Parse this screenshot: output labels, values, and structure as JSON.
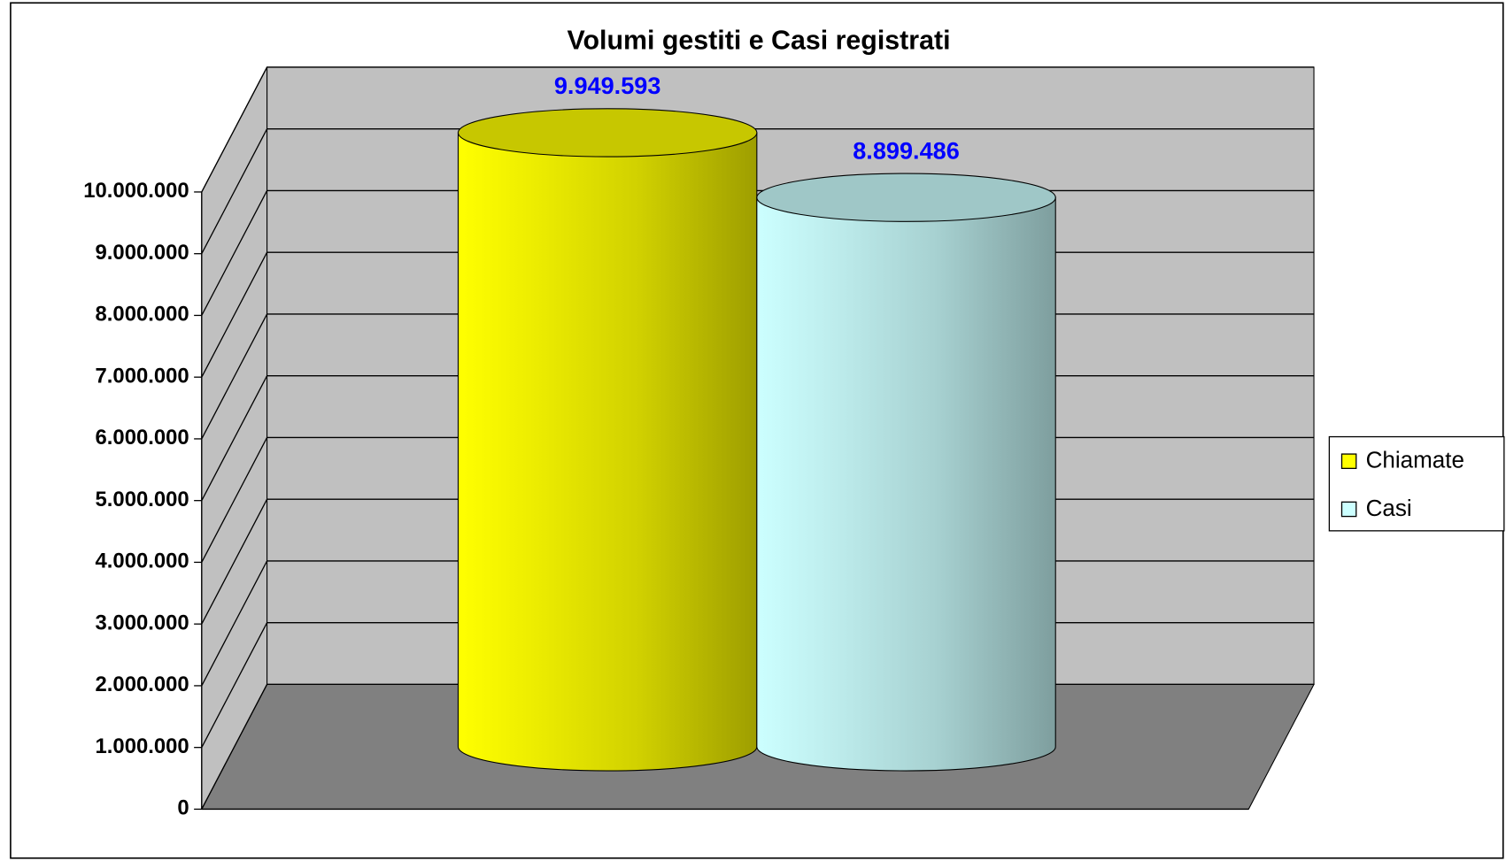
{
  "chart_data": {
    "type": "cylinder",
    "title": "Volumi gestiti e Casi registrati",
    "series": [
      {
        "name": "Chiamate",
        "color": "#ffff00",
        "values": [
          9949593
        ],
        "value_labels": [
          "9.949.593"
        ]
      },
      {
        "name": "Casi",
        "color": "#ccffff",
        "values": [
          8899486
        ],
        "value_labels": [
          "8.899.486"
        ]
      }
    ],
    "ylim": [
      0,
      10000000
    ],
    "yticks": [
      0,
      {
        "value": 1000000,
        "label": "1.000.000"
      },
      {
        "value": 2000000,
        "label": "2.000.000"
      },
      {
        "value": 3000000,
        "label": "3.000.000"
      },
      {
        "value": 4000000,
        "label": "4.000.000"
      },
      {
        "value": 5000000,
        "label": "5.000.000"
      },
      {
        "value": 6000000,
        "label": "6.000.000"
      },
      {
        "value": 7000000,
        "label": "7.000.000"
      },
      {
        "value": 8000000,
        "label": "8.000.000"
      },
      {
        "value": 9000000,
        "label": "9.000.000"
      },
      {
        "value": 10000000,
        "label": "10.000.000"
      }
    ],
    "grid": true,
    "value_label_color": "#0000ff",
    "legend": "right"
  }
}
